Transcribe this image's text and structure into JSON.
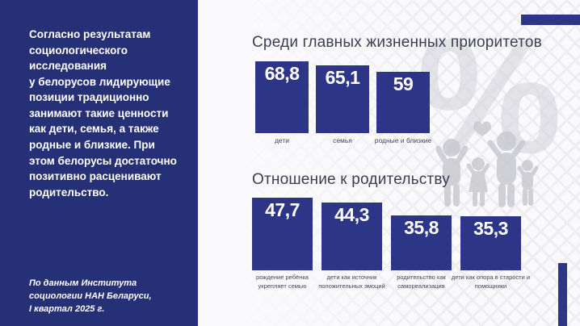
{
  "panel": {
    "paragraph": "Согласно результатам\nсоциологического\nисследования\nу белорусов лидирующие\nпозиции традиционно\nзанимают такие ценности\nкак дети, семья, а также\nродные и близкие. При\nэтом белорусы достаточно\nпозитивно расценивают\nродительство.",
    "source_note": "По данным Института\nсоциологии НАН Беларуси,\nI квартал 2025 г."
  },
  "watermarks": {
    "percent_sign": "%",
    "family_icon": "family-with-children-and-heart"
  },
  "colors": {
    "panel_navy": "#253077",
    "bar_navy": "#2c3586",
    "title_text": "#3b3e52",
    "label_text": "#43465c",
    "watermark_gray": "#d5d6dc",
    "background": "#fafafc"
  },
  "chart_data": [
    {
      "type": "bar",
      "title": "Среди главных жизненных приоритетов",
      "categories": [
        "дети",
        "семья",
        "родные и близкие"
      ],
      "values": [
        68.8,
        65.1,
        59
      ],
      "value_labels": [
        "68,8",
        "65,1",
        "59"
      ],
      "ylim": [
        0,
        100
      ],
      "grid": false,
      "legend": "none",
      "value_label_position": "inside-top",
      "bar_color": "#2c3586"
    },
    {
      "type": "bar",
      "title": "Отношение к родительству",
      "categories": [
        "рождение ребёнка укрепляет семью",
        "дети как источник положительных эмоций",
        "родительство как самореализация",
        "дети как опора в старости и помощники"
      ],
      "values": [
        47.7,
        44.3,
        35.8,
        35.3
      ],
      "value_labels": [
        "47,7",
        "44,3",
        "35,8",
        "35,3"
      ],
      "ylim": [
        0,
        100
      ],
      "grid": false,
      "legend": "none",
      "value_label_position": "inside-top",
      "bar_color": "#2c3586"
    }
  ]
}
